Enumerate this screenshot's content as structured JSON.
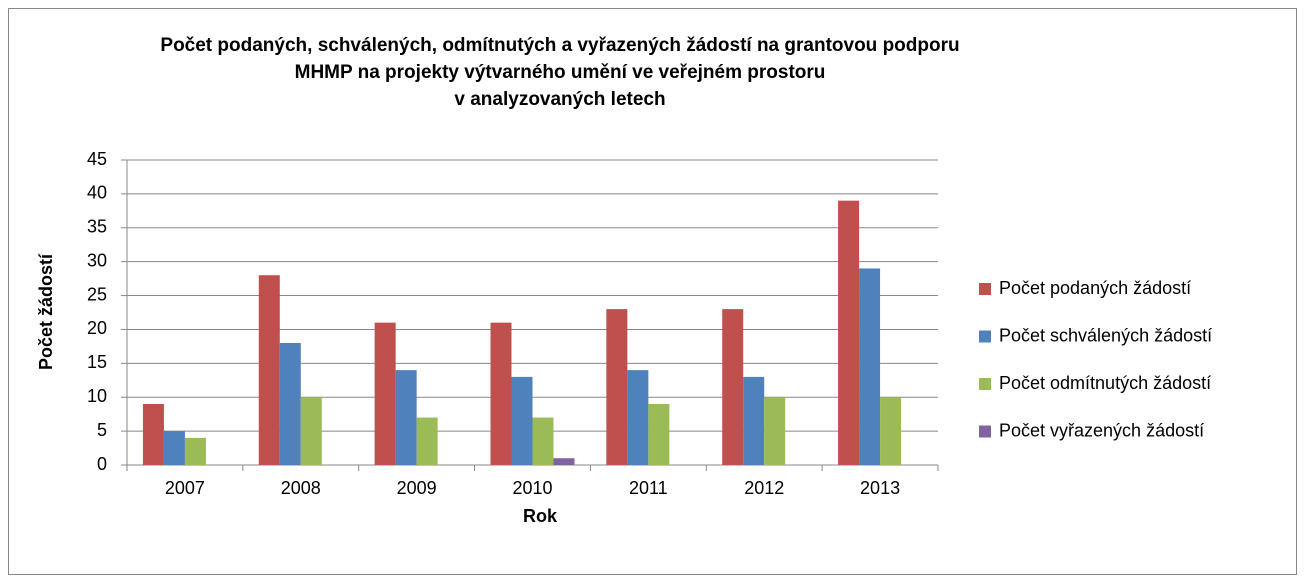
{
  "chart_data": {
    "type": "bar",
    "title": [
      "Počet podaných, schválených, odmítnutých a vyřazených  žádostí na grantovou podporu",
      "MHMP na projekty výtvarného umění ve veřejném prostoru",
      "v analyzovaných letech"
    ],
    "xlabel": "Rok",
    "ylabel": "Počet žádostí",
    "categories": [
      "2007",
      "2008",
      "2009",
      "2010",
      "2011",
      "2012",
      "2013"
    ],
    "series": [
      {
        "name": "Počet podaných žádostí",
        "color": "#c0504d",
        "values": [
          9,
          28,
          21,
          21,
          23,
          23,
          39
        ]
      },
      {
        "name": "Počet schválených žádostí",
        "color": "#4f81bd",
        "values": [
          5,
          18,
          14,
          13,
          14,
          13,
          29
        ]
      },
      {
        "name": "Počet odmítnutých žádostí",
        "color": "#9bbb59",
        "values": [
          4,
          10,
          7,
          7,
          9,
          10,
          10
        ]
      },
      {
        "name": "Počet vyřazených žádostí",
        "color": "#8064a2",
        "values": [
          0,
          0,
          0,
          1,
          0,
          0,
          0
        ]
      }
    ],
    "ylim": [
      0,
      45
    ],
    "yticks": [
      0,
      5,
      10,
      15,
      20,
      25,
      30,
      35,
      40,
      45
    ],
    "grid": true,
    "legend": "right"
  }
}
